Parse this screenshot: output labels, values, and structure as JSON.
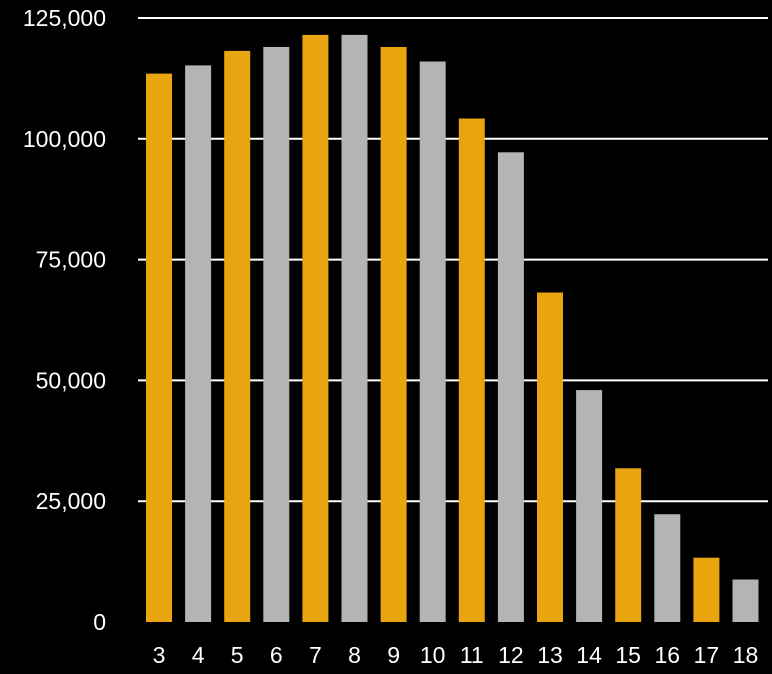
{
  "chart_data": {
    "type": "bar",
    "title": "",
    "xlabel": "",
    "ylabel": "",
    "categories": [
      "3",
      "4",
      "5",
      "6",
      "7",
      "8",
      "9",
      "10",
      "11",
      "12",
      "13",
      "14",
      "15",
      "16",
      "17",
      "18"
    ],
    "values": [
      113500,
      115200,
      118200,
      119000,
      121500,
      121500,
      119000,
      116000,
      104200,
      97200,
      68200,
      48000,
      31800,
      22300,
      13300,
      8800
    ],
    "bar_colors": [
      "#e8a50f",
      "#b4b5b2",
      "#e8a50f",
      "#b4b5b2",
      "#e8a50f",
      "#b4b5b2",
      "#e8a50f",
      "#b4b5b2",
      "#e8a50f",
      "#b4b5b2",
      "#e8a50f",
      "#b4b5b2",
      "#e8a50f",
      "#b4b5b2",
      "#e8a50f",
      "#b4b5b2"
    ],
    "yticks": [
      0,
      25000,
      50000,
      75000,
      100000,
      125000
    ],
    "ytick_labels": [
      "0",
      "25,000",
      "50,000",
      "75,000",
      "100,000",
      "125,000"
    ],
    "ylim": [
      0,
      125000
    ],
    "grid": true,
    "legend": "none",
    "colors": {
      "background": "#000000",
      "gridline": "#ffffff",
      "text": "#ffffff",
      "accent_gold": "#e8a50f",
      "accent_gray": "#b4b5b2"
    }
  }
}
